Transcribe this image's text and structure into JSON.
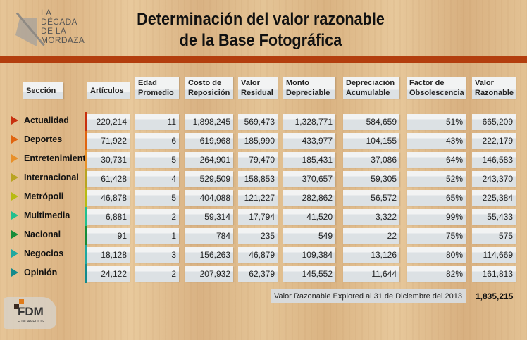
{
  "logo": {
    "lines": [
      "LA",
      "DÉCADA",
      "DE LA",
      "MORDAZA"
    ]
  },
  "title": {
    "line1": "Determinación del valor razonable",
    "line2": "de la Base Fotográfica"
  },
  "headers": {
    "section": "Sección",
    "articulos": "Artículos",
    "edad": [
      "Edad",
      "Promedio"
    ],
    "costo": [
      "Costo de",
      "Reposición"
    ],
    "residual": [
      "Valor",
      "Residual"
    ],
    "monto": [
      "Monto",
      "Depreciable"
    ],
    "depreciacion": [
      "Depreciación",
      "Acumulable"
    ],
    "factor": [
      "Factor de",
      "Obsolescencia"
    ],
    "razonable": [
      "Valor",
      "Razonable"
    ]
  },
  "rows": [
    {
      "section": "Actualidad",
      "color": "#c8300e",
      "values": [
        "220,214",
        "11",
        "1,898,245",
        "569,473",
        "1,328,771",
        "584,659",
        "51%",
        "665,209"
      ]
    },
    {
      "section": "Deportes",
      "color": "#e0640f",
      "values": [
        "71,922",
        "6",
        "619,968",
        "185,990",
        "433,977",
        "104,155",
        "43%",
        "222,179"
      ]
    },
    {
      "section": "Entretenimiento",
      "color": "#e8902a",
      "values": [
        "30,731",
        "5",
        "264,901",
        "79,470",
        "185,431",
        "37,086",
        "64%",
        "146,583"
      ]
    },
    {
      "section": "Internacional",
      "color": "#b9a421",
      "values": [
        "61,428",
        "4",
        "529,509",
        "158,853",
        "370,657",
        "59,305",
        "52%",
        "243,370"
      ]
    },
    {
      "section": "Metrópoli",
      "color": "#b8bb12",
      "values": [
        "46,878",
        "5",
        "404,088",
        "121,227",
        "282,862",
        "56,572",
        "65%",
        "225,384"
      ]
    },
    {
      "section": "Multimedia",
      "color": "#22c08e",
      "values": [
        "6,881",
        "2",
        "59,314",
        "17,794",
        "41,520",
        "3,322",
        "99%",
        "55,433"
      ]
    },
    {
      "section": "Nacional",
      "color": "#158c3a",
      "values": [
        "91",
        "1",
        "784",
        "235",
        "549",
        "22",
        "75%",
        "575"
      ]
    },
    {
      "section": "Negocios",
      "color": "#1ea8a0",
      "values": [
        "18,128",
        "3",
        "156,263",
        "46,879",
        "109,384",
        "13,126",
        "80%",
        "114,669"
      ]
    },
    {
      "section": "Opinión",
      "color": "#138a8c",
      "values": [
        "24,122",
        "2",
        "207,932",
        "62,379",
        "145,552",
        "11,644",
        "82%",
        "161,813"
      ]
    }
  ],
  "total": {
    "label": "Valor Razonable Explored al 31 de Diciembre del 2013",
    "value": "1,835,215"
  },
  "footer_logo": {
    "text": "FDM",
    "sub": "FUNDAMEDIOS"
  }
}
